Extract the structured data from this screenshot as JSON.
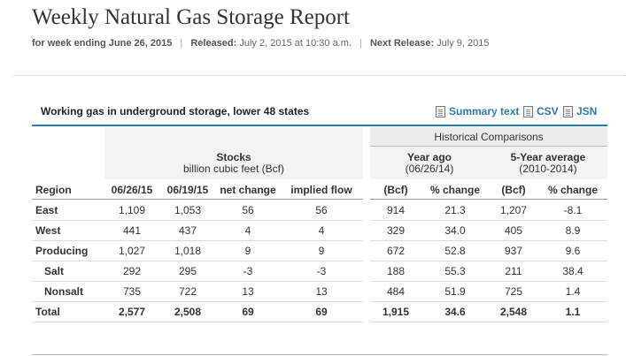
{
  "report": {
    "title": "Weekly Natural Gas Storage Report",
    "week_label": "for week ending June 26, 2015",
    "released_label": "Released:",
    "released_value": "July 2, 2015 at 10:30 a.m.",
    "next_label": "Next Release:",
    "next_value": "July 9, 2015",
    "separator": "|"
  },
  "table_heading": "Working gas in underground storage, lower 48 states",
  "downloads": [
    {
      "label": "Summary text",
      "icon": "document-icon"
    },
    {
      "label": "CSV",
      "icon": "document-icon"
    },
    {
      "label": "JSN",
      "icon": "document-icon"
    }
  ],
  "headers": {
    "historical": "Historical Comparisons",
    "stocks": "Stocks",
    "stocks_unit": "billion cubic feet (Bcf)",
    "year_ago": "Year ago",
    "year_ago_date": "(06/26/14)",
    "five_year": "5-Year average",
    "five_year_range": "(2010-2014)",
    "columns": [
      "Region",
      "06/26/15",
      "06/19/15",
      "net change",
      "implied flow",
      "(Bcf)",
      "% change",
      "(Bcf)",
      "% change"
    ]
  },
  "rows": [
    {
      "region": "East",
      "indent": false,
      "total": false,
      "values": [
        "1,109",
        "1,053",
        "56",
        "56",
        "914",
        "21.3",
        "1,207",
        "-8.1"
      ]
    },
    {
      "region": "West",
      "indent": false,
      "total": false,
      "values": [
        "441",
        "437",
        "4",
        "4",
        "329",
        "34.0",
        "405",
        "8.9"
      ]
    },
    {
      "region": "Producing",
      "indent": false,
      "total": false,
      "values": [
        "1,027",
        "1,018",
        "9",
        "9",
        "672",
        "52.8",
        "937",
        "9.6"
      ]
    },
    {
      "region": "Salt",
      "indent": true,
      "total": false,
      "values": [
        "292",
        "295",
        "-3",
        "-3",
        "188",
        "55.3",
        "211",
        "38.4"
      ]
    },
    {
      "region": "Nonsalt",
      "indent": true,
      "total": false,
      "values": [
        "735",
        "722",
        "13",
        "13",
        "484",
        "51.9",
        "725",
        "1.4"
      ]
    },
    {
      "region": "Total",
      "indent": false,
      "total": true,
      "values": [
        "2,577",
        "2,508",
        "69",
        "69",
        "1,915",
        "34.6",
        "2,548",
        "1.1"
      ]
    }
  ],
  "colors": {
    "accent": "#2a7ab8",
    "text": "#333333",
    "shade": "#f3f3f3"
  }
}
